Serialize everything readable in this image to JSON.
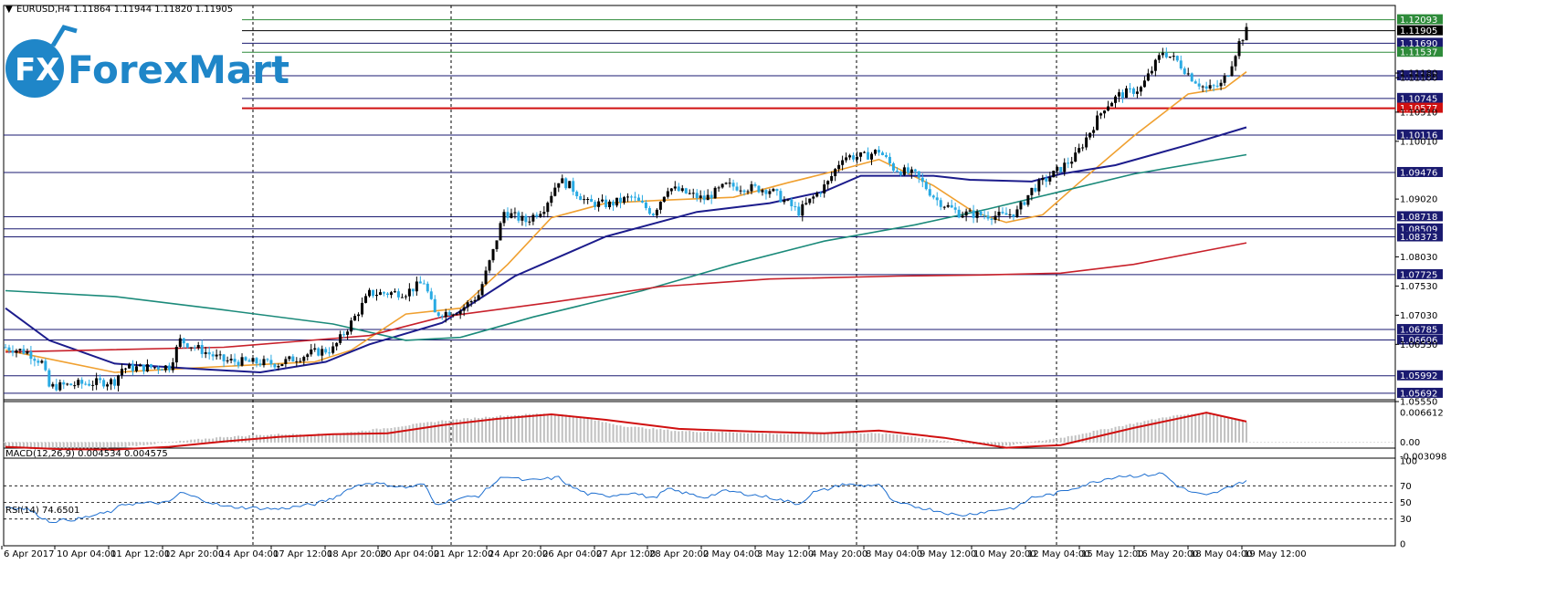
{
  "header": {
    "menu_symbol": "▼",
    "title": "EURUSD,H4  1.11864 1.11944 1.11820 1.11905"
  },
  "logo": {
    "mark": "FX",
    "text": "ForexMart",
    "color": "#1f86c8"
  },
  "colors": {
    "bull": "#000000",
    "bear": "#29aae3",
    "ma_fast": "#f0a030",
    "ma_mid": "#1c1c8c",
    "ma_slow": "#1b8a7a",
    "ma_long": "#c8202a",
    "macd_signal": "#d01010",
    "macd_hist": "#c0c0c0",
    "rsi": "#1e6fd0"
  },
  "chart_data": [
    {
      "type": "candlestick",
      "title": "EURUSD,H4  1.11864 1.11944 1.11820 1.11905",
      "ylim": [
        1.0555,
        1.1215
      ],
      "price_ticks": [
        "1.11180",
        "1.11100",
        "1.10510",
        "1.10010",
        "1.09020",
        "1.08030",
        "1.07530",
        "1.07030",
        "1.06530",
        "1.05550"
      ],
      "x_ticks": [
        "6 Apr 2017",
        "10 Apr 04:00",
        "11 Apr 12:00",
        "12 Apr 20:00",
        "14 Apr 04:00",
        "17 Apr 12:00",
        "18 Apr 20:00",
        "20 Apr 04:00",
        "21 Apr 12:00",
        "24 Apr 20:00",
        "26 Apr 04:00",
        "27 Apr 12:00",
        "28 Apr 20:00",
        "2 May 04:00",
        "3 May 12:00",
        "4 May 20:00",
        "8 May 04:00",
        "9 May 12:00",
        "10 May 20:00",
        "12 May 04:00",
        "15 May 12:00",
        "16 May 20:00",
        "18 May 04:00",
        "19 May 12:00"
      ],
      "levels": [
        {
          "value": 1.12093,
          "label": "1.12093",
          "color": "#2e8b3a"
        },
        {
          "value": 1.11905,
          "label": "1.11905",
          "color": "#000000"
        },
        {
          "value": 1.1169,
          "label": "1.11690",
          "color": "#1a1a70"
        },
        {
          "value": 1.11537,
          "label": "1.11537",
          "color": "#2e8b3a"
        },
        {
          "value": 1.11133,
          "label": "1.11133",
          "color": "#1a1a70"
        },
        {
          "value": 1.10745,
          "label": "1.10745",
          "color": "#1a1a70"
        },
        {
          "value": 1.10577,
          "label": "1.10577",
          "color": "#d01010"
        },
        {
          "value": 1.10116,
          "label": "1.10116",
          "color": "#1a1a70"
        },
        {
          "value": 1.09476,
          "label": "1.09476",
          "color": "#1a1a70"
        },
        {
          "value": 1.08718,
          "label": "1.08718",
          "color": "#1a1a70"
        },
        {
          "value": 1.08509,
          "label": "1.08509",
          "color": "#1a1a70"
        },
        {
          "value": 1.08373,
          "label": "1.08373",
          "color": "#1a1a70"
        },
        {
          "value": 1.07725,
          "label": "1.07725",
          "color": "#1a1a70"
        },
        {
          "value": 1.06785,
          "label": "1.06785",
          "color": "#1a1a70"
        },
        {
          "value": 1.06606,
          "label": "1.06606",
          "color": "#1a1a70"
        },
        {
          "value": 1.05992,
          "label": "1.05992",
          "color": "#1a1a70"
        },
        {
          "value": 1.05692,
          "label": "1.05692",
          "color": "#1a1a70"
        }
      ],
      "price_path": [
        [
          0,
          1.0648
        ],
        [
          6,
          1.064
        ],
        [
          10,
          1.0622
        ],
        [
          12,
          1.058
        ],
        [
          20,
          1.0585
        ],
        [
          30,
          1.059
        ],
        [
          32,
          1.0612
        ],
        [
          45,
          1.0615
        ],
        [
          48,
          1.066
        ],
        [
          60,
          1.0625
        ],
        [
          75,
          1.062
        ],
        [
          84,
          1.0638
        ],
        [
          90,
          1.0645
        ],
        [
          95,
          1.069
        ],
        [
          100,
          1.074
        ],
        [
          110,
          1.0742
        ],
        [
          115,
          1.076
        ],
        [
          118,
          1.0705
        ],
        [
          125,
          1.0712
        ],
        [
          130,
          1.0738
        ],
        [
          134,
          1.0812
        ],
        [
          137,
          1.088
        ],
        [
          143,
          1.0864
        ],
        [
          148,
          1.0888
        ],
        [
          152,
          1.0935
        ],
        [
          155,
          1.0925
        ],
        [
          160,
          1.0895
        ],
        [
          166,
          1.0893
        ],
        [
          172,
          1.0905
        ],
        [
          178,
          1.0878
        ],
        [
          182,
          1.0922
        ],
        [
          192,
          1.0902
        ],
        [
          198,
          1.0925
        ],
        [
          210,
          1.0918
        ],
        [
          218,
          1.088
        ],
        [
          222,
          1.0905
        ],
        [
          226,
          1.093
        ],
        [
          230,
          1.0975
        ],
        [
          236,
          1.0975
        ],
        [
          240,
          1.0985
        ],
        [
          244,
          1.0955
        ],
        [
          250,
          1.0943
        ],
        [
          256,
          1.09
        ],
        [
          262,
          1.0878
        ],
        [
          268,
          1.0875
        ],
        [
          274,
          1.0873
        ],
        [
          278,
          1.088
        ],
        [
          282,
          1.0918
        ],
        [
          288,
          1.0945
        ],
        [
          294,
          1.0975
        ],
        [
          302,
          1.106
        ],
        [
          306,
          1.108
        ],
        [
          312,
          1.1092
        ],
        [
          318,
          1.1155
        ],
        [
          322,
          1.1138
        ],
        [
          326,
          1.111
        ],
        [
          330,
          1.109
        ],
        [
          334,
          1.1098
        ],
        [
          336,
          1.112
        ],
        [
          339,
          1.117
        ],
        [
          341,
          1.119
        ]
      ],
      "moving_averages": [
        {
          "color": "#f0a030",
          "points": [
            [
              0,
              1.0643
            ],
            [
              12,
              1.0628
            ],
            [
              30,
              1.0605
            ],
            [
              50,
              1.0612
            ],
            [
              75,
              1.062
            ],
            [
              85,
              1.0623
            ],
            [
              95,
              1.0643
            ],
            [
              110,
              1.0705
            ],
            [
              125,
              1.0715
            ],
            [
              138,
              1.079
            ],
            [
              150,
              1.087
            ],
            [
              165,
              1.0895
            ],
            [
              180,
              1.09
            ],
            [
              200,
              1.0905
            ],
            [
              215,
              1.093
            ],
            [
              228,
              1.095
            ],
            [
              240,
              1.097
            ],
            [
              255,
              1.0925
            ],
            [
              266,
              1.088
            ],
            [
              275,
              1.0862
            ],
            [
              285,
              1.0875
            ],
            [
              295,
              1.093
            ],
            [
              310,
              1.101
            ],
            [
              325,
              1.1082
            ],
            [
              335,
              1.1092
            ],
            [
              341,
              1.112
            ]
          ]
        },
        {
          "color": "#1c1c8c",
          "points": [
            [
              0,
              1.0715
            ],
            [
              12,
              1.066
            ],
            [
              30,
              1.062
            ],
            [
              50,
              1.0612
            ],
            [
              70,
              1.0605
            ],
            [
              88,
              1.0623
            ],
            [
              100,
              1.0653
            ],
            [
              120,
              1.069
            ],
            [
              140,
              1.077
            ],
            [
              165,
              1.0838
            ],
            [
              190,
              1.088
            ],
            [
              210,
              1.0895
            ],
            [
              225,
              1.0915
            ],
            [
              235,
              1.0942
            ],
            [
              255,
              1.0942
            ],
            [
              265,
              1.0935
            ],
            [
              282,
              1.0932
            ],
            [
              290,
              1.0945
            ],
            [
              305,
              1.096
            ],
            [
              325,
              1.0995
            ],
            [
              341,
              1.1025
            ]
          ]
        },
        {
          "color": "#1b8a7a",
          "points": [
            [
              0,
              1.0745
            ],
            [
              30,
              1.0735
            ],
            [
              60,
              1.0712
            ],
            [
              90,
              1.0688
            ],
            [
              110,
              1.066
            ],
            [
              125,
              1.0665
            ],
            [
              145,
              1.07
            ],
            [
              175,
              1.0745
            ],
            [
              200,
              1.079
            ],
            [
              225,
              1.083
            ],
            [
              250,
              1.0858
            ],
            [
              270,
              1.0885
            ],
            [
              290,
              1.0915
            ],
            [
              310,
              1.0945
            ],
            [
              341,
              1.0978
            ]
          ]
        },
        {
          "color": "#c8202a",
          "points": [
            [
              0,
              1.064
            ],
            [
              60,
              1.0648
            ],
            [
              100,
              1.0668
            ],
            [
              120,
              1.07
            ],
            [
              150,
              1.0725
            ],
            [
              180,
              1.0752
            ],
            [
              210,
              1.0765
            ],
            [
              245,
              1.077
            ],
            [
              268,
              1.0772
            ],
            [
              290,
              1.0775
            ],
            [
              310,
              1.079
            ],
            [
              341,
              1.0827
            ]
          ]
        }
      ]
    },
    {
      "type": "bar",
      "title": "MACD(12,26,9) 0.004534 0.004575",
      "ylim": [
        -0.003098,
        0.006612
      ],
      "tick_labels": [
        "0.006612",
        "0.00",
        "-0.003098"
      ],
      "histogram": [
        [
          0,
          -0.001
        ],
        [
          15,
          -0.0018
        ],
        [
          30,
          -0.0012
        ],
        [
          45,
          0.0
        ],
        [
          60,
          0.0012
        ],
        [
          75,
          0.0018
        ],
        [
          90,
          0.0018
        ],
        [
          105,
          0.0032
        ],
        [
          120,
          0.0048
        ],
        [
          135,
          0.0058
        ],
        [
          148,
          0.0064
        ],
        [
          155,
          0.006
        ],
        [
          170,
          0.0036
        ],
        [
          185,
          0.0025
        ],
        [
          200,
          0.0022
        ],
        [
          215,
          0.0018
        ],
        [
          230,
          0.0022
        ],
        [
          245,
          0.0018
        ],
        [
          260,
          0.0
        ],
        [
          275,
          -0.0008
        ],
        [
          290,
          0.001
        ],
        [
          305,
          0.0034
        ],
        [
          320,
          0.0058
        ],
        [
          330,
          0.0066
        ],
        [
          341,
          0.0045
        ]
      ],
      "signal": [
        [
          0,
          -0.001
        ],
        [
          15,
          -0.0015
        ],
        [
          30,
          -0.0016
        ],
        [
          45,
          -0.001
        ],
        [
          60,
          0.0002
        ],
        [
          75,
          0.0012
        ],
        [
          90,
          0.0018
        ],
        [
          105,
          0.002
        ],
        [
          120,
          0.0038
        ],
        [
          135,
          0.0052
        ],
        [
          150,
          0.0062
        ],
        [
          165,
          0.005
        ],
        [
          185,
          0.003
        ],
        [
          205,
          0.0024
        ],
        [
          225,
          0.002
        ],
        [
          240,
          0.0026
        ],
        [
          258,
          0.001
        ],
        [
          275,
          -0.0012
        ],
        [
          290,
          -0.0006
        ],
        [
          310,
          0.0032
        ],
        [
          330,
          0.0066
        ],
        [
          341,
          0.0046
        ]
      ]
    },
    {
      "type": "line",
      "title": "RSI(14) 74.6501",
      "ylim": [
        0,
        100
      ],
      "tick_labels": [
        "100",
        "70",
        "50",
        "30",
        "0"
      ],
      "levels": [
        70,
        50,
        30
      ],
      "points": [
        [
          0,
          45
        ],
        [
          6,
          42
        ],
        [
          10,
          32
        ],
        [
          12,
          27
        ],
        [
          20,
          30
        ],
        [
          30,
          40
        ],
        [
          32,
          48
        ],
        [
          45,
          50
        ],
        [
          48,
          62
        ],
        [
          60,
          45
        ],
        [
          75,
          42
        ],
        [
          85,
          48
        ],
        [
          90,
          55
        ],
        [
          95,
          68
        ],
        [
          100,
          74
        ],
        [
          110,
          68
        ],
        [
          115,
          72
        ],
        [
          118,
          48
        ],
        [
          125,
          55
        ],
        [
          130,
          58
        ],
        [
          134,
          72
        ],
        [
          137,
          82
        ],
        [
          143,
          76
        ],
        [
          148,
          78
        ],
        [
          152,
          80
        ],
        [
          155,
          70
        ],
        [
          160,
          60
        ],
        [
          166,
          58
        ],
        [
          172,
          62
        ],
        [
          178,
          55
        ],
        [
          182,
          66
        ],
        [
          192,
          56
        ],
        [
          198,
          64
        ],
        [
          210,
          56
        ],
        [
          218,
          48
        ],
        [
          222,
          62
        ],
        [
          226,
          66
        ],
        [
          230,
          72
        ],
        [
          236,
          70
        ],
        [
          240,
          72
        ],
        [
          244,
          50
        ],
        [
          250,
          45
        ],
        [
          256,
          40
        ],
        [
          262,
          34
        ],
        [
          268,
          38
        ],
        [
          274,
          42
        ],
        [
          278,
          44
        ],
        [
          282,
          56
        ],
        [
          288,
          60
        ],
        [
          294,
          68
        ],
        [
          302,
          78
        ],
        [
          306,
          82
        ],
        [
          312,
          82
        ],
        [
          318,
          85
        ],
        [
          322,
          70
        ],
        [
          326,
          62
        ],
        [
          330,
          58
        ],
        [
          334,
          64
        ],
        [
          336,
          68
        ],
        [
          339,
          74
        ],
        [
          341,
          74.65
        ]
      ]
    }
  ]
}
